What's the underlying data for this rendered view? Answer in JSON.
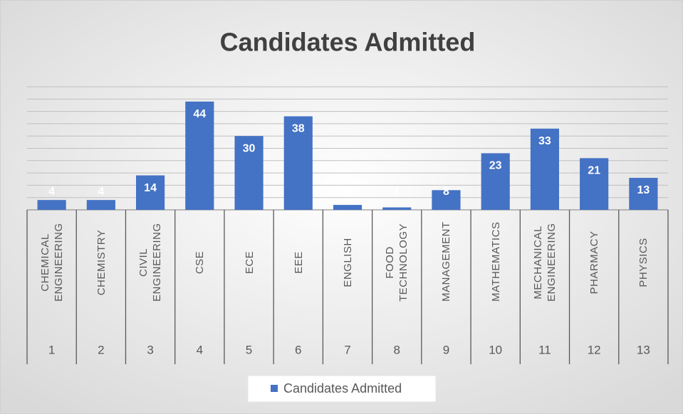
{
  "chart_data": {
    "type": "bar",
    "title": "Candidates Admitted",
    "categories": [
      "CHEMICAL ENGINEERING",
      "CHEMISTRY",
      "CIVIL ENGINEERING",
      "CSE",
      "ECE",
      "EEE",
      "ENGLISH",
      "FOOD TECHNOLOGY",
      "MANAGEMENT",
      "MATHEMATICS",
      "MECHANICAL ENGINEERING",
      "PHARMACY",
      "PHYSICS"
    ],
    "category_numbers": [
      1,
      2,
      3,
      4,
      5,
      6,
      7,
      8,
      9,
      10,
      11,
      12,
      13
    ],
    "series": [
      {
        "name": "Candidates Admitted",
        "color": "#4472c4",
        "values": [
          4,
          4,
          14,
          44,
          30,
          38,
          2,
          1,
          8,
          23,
          33,
          21,
          13
        ]
      }
    ],
    "ylim": [
      0,
      50
    ],
    "yticks": [
      0,
      5,
      10,
      15,
      20,
      25,
      30,
      35,
      40,
      45,
      50
    ],
    "grid": true,
    "ytick_labels": false,
    "data_labels": true,
    "legend": "bottom"
  }
}
